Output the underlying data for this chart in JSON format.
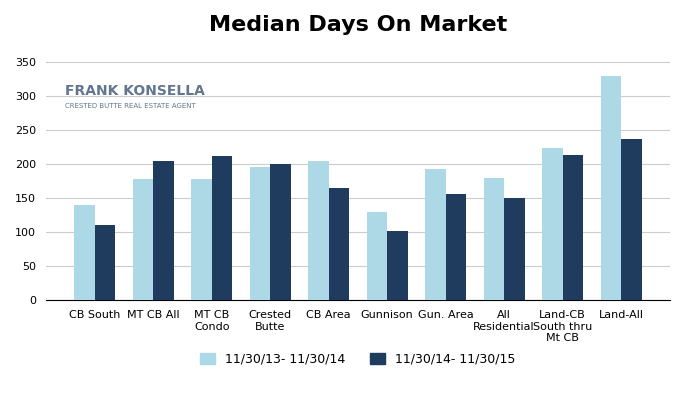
{
  "title": "Median Days On Market",
  "categories": [
    "CB South",
    "MT CB All",
    "MT CB\nCondo",
    "Crested\nButte",
    "CB Area",
    "Gunnison",
    "Gun. Area",
    "All\nResidential",
    "Land-CB\nSouth thru\nMt CB",
    "Land-All"
  ],
  "series1_label": "11/30/13- 11/30/14",
  "series2_label": "11/30/14- 11/30/15",
  "series1_values": [
    140,
    178,
    178,
    195,
    205,
    130,
    193,
    179,
    224,
    330
  ],
  "series2_values": [
    110,
    205,
    212,
    200,
    165,
    102,
    156,
    150,
    213,
    237
  ],
  "color1": "#add8e6",
  "color2": "#1f3c5e",
  "ylim": [
    0,
    375
  ],
  "yticks": [
    0,
    50,
    100,
    150,
    200,
    250,
    300,
    350
  ],
  "bg_color": "#ffffff",
  "grid_color": "#cccccc",
  "title_fontsize": 16,
  "tick_fontsize": 8,
  "legend_fontsize": 9
}
